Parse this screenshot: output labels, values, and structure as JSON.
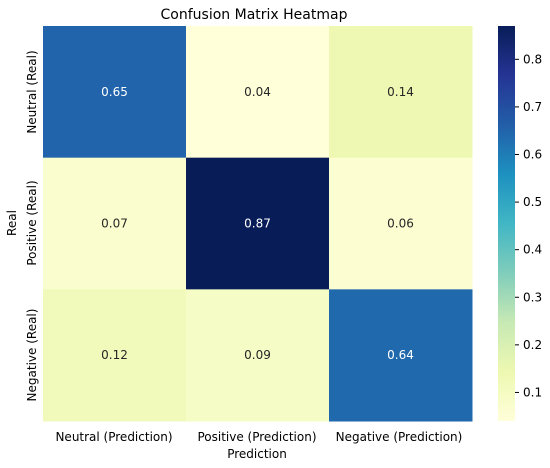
{
  "chart_data": {
    "type": "heatmap",
    "title": "Confusion Matrix Heatmap",
    "xlabel": "Prediction",
    "ylabel": "Real",
    "x_categories": [
      "Neutral (Prediction)",
      "Positive (Prediction)",
      "Negative (Prediction)"
    ],
    "y_categories": [
      "Neutral (Real)",
      "Positive (Real)",
      "Negative (Real)"
    ],
    "values": [
      [
        0.65,
        0.04,
        0.14
      ],
      [
        0.07,
        0.87,
        0.06
      ],
      [
        0.12,
        0.09,
        0.64
      ]
    ],
    "colormap": "YlGnBu",
    "colorbar": {
      "range": [
        0.04,
        0.87
      ],
      "ticks": [
        "0.1",
        "0.2",
        "0.3",
        "0.4",
        "0.5",
        "0.6",
        "0.7",
        "0.8"
      ]
    },
    "annotation_colors": {
      "light_cell_text": "#262626",
      "dark_cell_text": "#ffffff"
    }
  }
}
